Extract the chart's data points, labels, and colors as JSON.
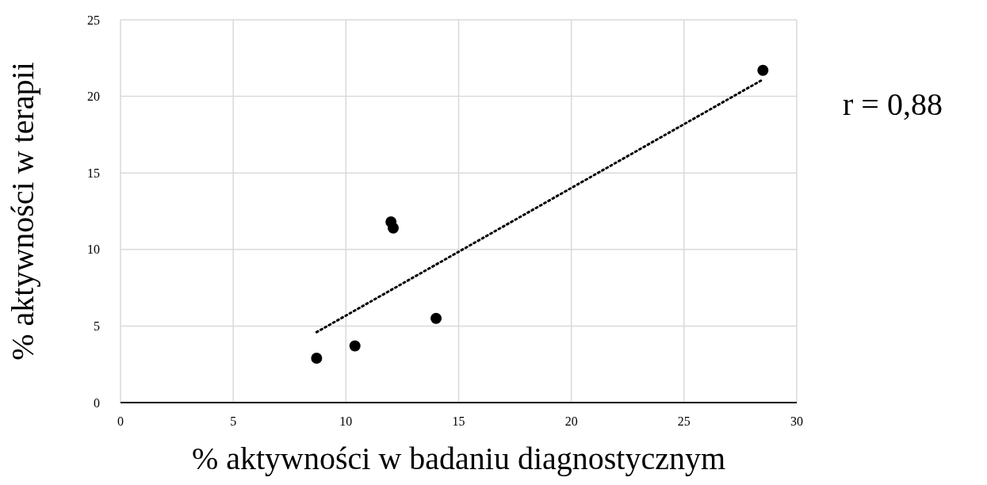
{
  "chart_data": {
    "type": "scatter",
    "xlabel": "% aktywności w badaniu diagnostycznym",
    "ylabel": "% aktywności w terapii",
    "x": [
      8.7,
      10.4,
      12.0,
      12.1,
      14.0,
      28.5
    ],
    "series": [
      {
        "color": "#000000",
        "values": [
          2.9,
          3.7,
          11.8,
          11.4,
          5.5,
          21.7
        ]
      },
      {
        "type": "line",
        "color": "#000000",
        "line_style": "dotted",
        "marker": "none",
        "x": [
          8.7,
          28.5
        ],
        "values": [
          4.6,
          21.1
        ]
      }
    ],
    "xlim": [
      0,
      30
    ],
    "xticks": [
      0,
      5,
      10,
      15,
      20,
      25,
      30
    ],
    "ylim": [
      0,
      25
    ],
    "yticks": [
      0,
      5,
      10,
      15,
      20,
      25
    ],
    "grid": true,
    "marker": "circle",
    "annotations": [
      "r = 0,88"
    ]
  }
}
